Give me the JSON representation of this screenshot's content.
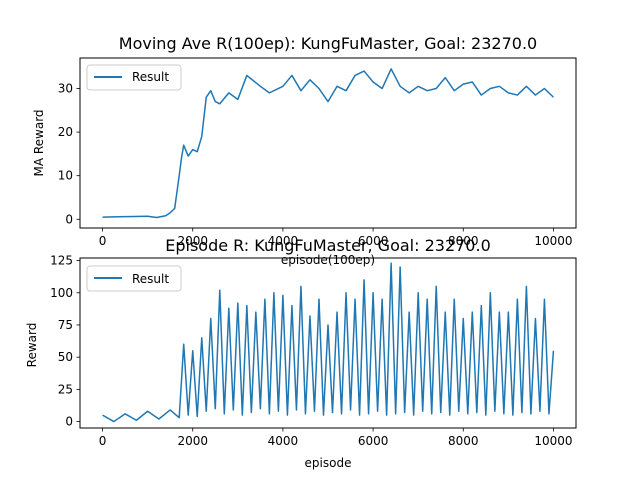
{
  "colors": {
    "series": "#1f77b4",
    "axes": "#000000",
    "legend_border": "#cccccc"
  },
  "chart_data": [
    {
      "type": "line",
      "title": "Moving Ave R(100ep): KungFuMaster, Goal: 23270.0",
      "xlabel": "episode(100ep)",
      "ylabel": "MA Reward",
      "xlim": [
        -500,
        10500
      ],
      "ylim": [
        -2,
        37
      ],
      "xticks": [
        0,
        2000,
        4000,
        6000,
        8000,
        10000
      ],
      "yticks": [
        0,
        10,
        20,
        30
      ],
      "legend": {
        "placement": "upper-left",
        "entries": [
          "Result"
        ]
      },
      "grid": false,
      "series": [
        {
          "name": "Result",
          "x": [
            0,
            500,
            1000,
            1200,
            1400,
            1500,
            1600,
            1700,
            1750,
            1800,
            1900,
            2000,
            2100,
            2200,
            2300,
            2400,
            2500,
            2600,
            2800,
            3000,
            3200,
            3500,
            3700,
            4000,
            4200,
            4400,
            4600,
            4800,
            5000,
            5200,
            5400,
            5600,
            5800,
            6000,
            6200,
            6400,
            6600,
            6800,
            7000,
            7200,
            7400,
            7600,
            7800,
            8000,
            8200,
            8400,
            8600,
            8800,
            9000,
            9200,
            9400,
            9600,
            9800,
            10000
          ],
          "values": [
            0.5,
            0.6,
            0.7,
            0.4,
            0.8,
            1.5,
            2.5,
            10,
            14,
            17,
            14.5,
            16,
            15.5,
            19,
            28,
            29.5,
            27,
            26.5,
            29,
            27.5,
            33,
            30.5,
            29,
            30.5,
            33,
            29.5,
            32,
            30,
            27,
            30.5,
            29.5,
            33,
            34,
            31.5,
            30,
            34.5,
            30.5,
            29,
            30.5,
            29.5,
            30,
            32.5,
            29.5,
            31,
            31.5,
            28.5,
            30,
            30.5,
            29,
            28.5,
            30.5,
            28.5,
            30,
            28
          ]
        }
      ]
    },
    {
      "type": "line",
      "title": "Episode R: KungFuMaster, Goal: 23270.0",
      "xlabel": "episode",
      "ylabel": "Reward",
      "xlim": [
        -500,
        10500
      ],
      "ylim": [
        -5,
        127
      ],
      "xticks": [
        0,
        2000,
        4000,
        6000,
        8000,
        10000
      ],
      "yticks": [
        0,
        25,
        50,
        75,
        100,
        125
      ],
      "legend": {
        "placement": "upper-left",
        "entries": [
          "Result"
        ]
      },
      "grid": false,
      "series": [
        {
          "name": "Result",
          "x": [
            0,
            250,
            500,
            750,
            1000,
            1250,
            1500,
            1700,
            1800,
            1900,
            2000,
            2100,
            2200,
            2300,
            2400,
            2500,
            2600,
            2700,
            2800,
            2900,
            3000,
            3100,
            3200,
            3300,
            3400,
            3500,
            3600,
            3700,
            3800,
            3900,
            4000,
            4100,
            4200,
            4300,
            4400,
            4500,
            4600,
            4700,
            4800,
            4900,
            5000,
            5100,
            5200,
            5300,
            5400,
            5500,
            5600,
            5700,
            5800,
            5900,
            6000,
            6100,
            6200,
            6300,
            6400,
            6500,
            6600,
            6700,
            6800,
            6900,
            7000,
            7100,
            7200,
            7300,
            7400,
            7500,
            7600,
            7700,
            7800,
            7900,
            8000,
            8100,
            8200,
            8300,
            8400,
            8500,
            8600,
            8700,
            8800,
            8900,
            9000,
            9100,
            9200,
            9300,
            9400,
            9500,
            9600,
            9700,
            9800,
            9900,
            10000
          ],
          "values": [
            5,
            0,
            6,
            1,
            8,
            2,
            9,
            3,
            60,
            5,
            55,
            4,
            65,
            8,
            80,
            10,
            102,
            6,
            88,
            9,
            92,
            5,
            90,
            7,
            85,
            10,
            95,
            6,
            100,
            8,
            98,
            5,
            90,
            9,
            105,
            6,
            82,
            8,
            95,
            5,
            75,
            7,
            85,
            6,
            100,
            9,
            95,
            5,
            110,
            6,
            100,
            8,
            95,
            5,
            123,
            6,
            120,
            7,
            85,
            5,
            100,
            8,
            95,
            6,
            105,
            7,
            85,
            5,
            95,
            8,
            80,
            6,
            85,
            7,
            90,
            5,
            100,
            8,
            85,
            6,
            85,
            5,
            95,
            7,
            105,
            6,
            80,
            8,
            95,
            6,
            55
          ]
        }
      ]
    }
  ]
}
